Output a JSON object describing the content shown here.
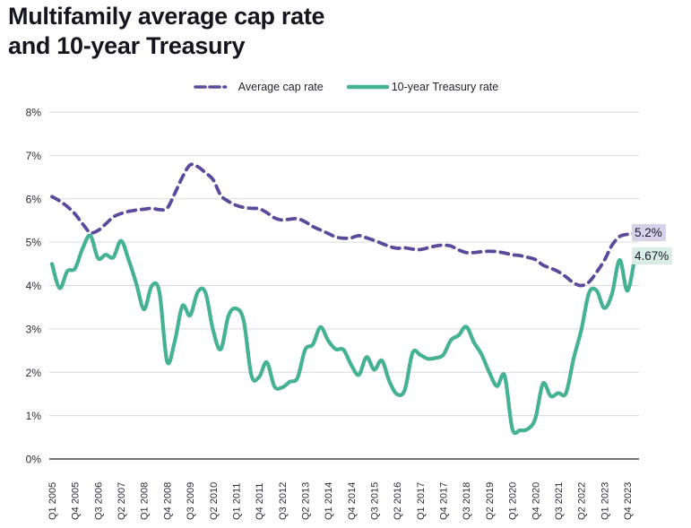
{
  "title": "Multifamily average cap rate\nand 10-year Treasury",
  "colors": {
    "cap_rate_line": "#5b4a9c",
    "treasury_line": "#45b293",
    "grid": "#d9d9d9",
    "zero_axis": "#757575",
    "title_text": "#15151f",
    "tick_text": "#2b2b36"
  },
  "chart_data": {
    "type": "line",
    "title": "Multifamily average cap rate and 10-year Treasury",
    "grid": "horizontal",
    "legend_position": "top-center",
    "ylim": [
      0,
      8
    ],
    "y_ticks": [
      {
        "v": 0,
        "label": "0%"
      },
      {
        "v": 1,
        "label": "1%"
      },
      {
        "v": 2,
        "label": "2%"
      },
      {
        "v": 3,
        "label": "3%"
      },
      {
        "v": 4,
        "label": "4%"
      },
      {
        "v": 5,
        "label": "5%"
      },
      {
        "v": 6,
        "label": "6%"
      },
      {
        "v": 7,
        "label": "7%"
      },
      {
        "v": 8,
        "label": "8%"
      }
    ],
    "x_tick_labels": [
      "Q1 2005",
      "Q4 2005",
      "Q3 2006",
      "Q2 2007",
      "Q1 2008",
      "Q4 2008",
      "Q3 2009",
      "Q2 2010",
      "Q1 2011",
      "Q4 2011",
      "Q3 2012",
      "Q2 2013",
      "Q1 2014",
      "Q4 2014",
      "Q3 2015",
      "Q2 2016",
      "Q1 2017",
      "Q4 2017",
      "Q3 2018",
      "Q2 2019",
      "Q1 2020",
      "Q4 2020",
      "Q3 2021",
      "Q2 2022",
      "Q1 2023",
      "Q4 2023"
    ],
    "quarters_per_tick": 3,
    "series": [
      {
        "name": "Average cap rate",
        "color": "#5b4a9c",
        "dash": true,
        "width": 3.8,
        "values": [
          6.05,
          5.95,
          5.82,
          5.65,
          5.42,
          5.22,
          5.27,
          5.42,
          5.58,
          5.66,
          5.71,
          5.74,
          5.76,
          5.78,
          5.75,
          5.78,
          6.12,
          6.5,
          6.78,
          6.74,
          6.6,
          6.44,
          6.08,
          5.94,
          5.85,
          5.8,
          5.78,
          5.77,
          5.68,
          5.56,
          5.51,
          5.53,
          5.54,
          5.47,
          5.36,
          5.28,
          5.2,
          5.12,
          5.09,
          5.1,
          5.15,
          5.1,
          5.04,
          4.97,
          4.9,
          4.86,
          4.87,
          4.84,
          4.83,
          4.87,
          4.91,
          4.93,
          4.91,
          4.82,
          4.76,
          4.76,
          4.78,
          4.79,
          4.78,
          4.75,
          4.71,
          4.69,
          4.65,
          4.6,
          4.47,
          4.4,
          4.32,
          4.2,
          4.06,
          4.0,
          4.08,
          4.31,
          4.58,
          4.93,
          5.13,
          5.18,
          5.2
        ]
      },
      {
        "name": "10-year Treasury rate",
        "color": "#45b293",
        "dash": false,
        "width": 4.2,
        "values": [
          4.5,
          3.94,
          4.33,
          4.39,
          4.86,
          5.15,
          4.63,
          4.71,
          4.65,
          5.03,
          4.59,
          4.04,
          3.45,
          3.99,
          3.85,
          2.25,
          2.71,
          3.53,
          3.31,
          3.85,
          3.84,
          2.97,
          2.53,
          3.3,
          3.47,
          3.18,
          1.92,
          1.89,
          2.23,
          1.67,
          1.65,
          1.78,
          1.87,
          2.52,
          2.64,
          3.04,
          2.73,
          2.53,
          2.52,
          2.17,
          1.94,
          2.35,
          2.06,
          2.27,
          1.78,
          1.49,
          1.6,
          2.45,
          2.4,
          2.31,
          2.33,
          2.4,
          2.74,
          2.85,
          3.05,
          2.69,
          2.41,
          2.0,
          1.68,
          1.92,
          0.7,
          0.66,
          0.69,
          0.93,
          1.74,
          1.45,
          1.52,
          1.52,
          2.32,
          2.98,
          3.83,
          3.88,
          3.48,
          3.81,
          4.59,
          3.88,
          4.67
        ]
      }
    ],
    "end_labels": [
      {
        "text": "5.2%",
        "value": 5.2,
        "bg": "#d7d2ea"
      },
      {
        "text": "4.67%",
        "value": 4.67,
        "bg": "#d8ede4"
      }
    ]
  }
}
